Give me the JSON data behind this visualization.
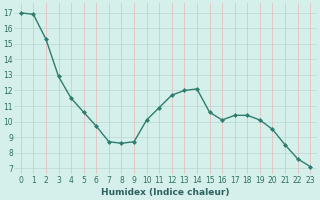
{
  "x": [
    0,
    1,
    2,
    3,
    4,
    5,
    6,
    7,
    8,
    9,
    10,
    11,
    12,
    13,
    14,
    15,
    16,
    17,
    18,
    19,
    20,
    21,
    22,
    23
  ],
  "y": [
    17.0,
    16.9,
    15.3,
    12.9,
    11.5,
    10.6,
    9.7,
    8.7,
    8.6,
    8.7,
    10.1,
    10.9,
    11.7,
    12.0,
    12.1,
    10.6,
    10.1,
    10.4,
    10.4,
    10.1,
    9.5,
    8.5,
    7.6,
    7.1
  ],
  "line_color": "#2e7d6e",
  "marker": "D",
  "marker_size": 2.0,
  "bg_color": "#d5f0eb",
  "grid_color_h": "#b5d9d3",
  "grid_color_v": "#e8b8b8",
  "ylabel_values": [
    7,
    8,
    9,
    10,
    11,
    12,
    13,
    14,
    15,
    16,
    17
  ],
  "ylim": [
    6.6,
    17.6
  ],
  "xlim": [
    -0.5,
    23.5
  ],
  "xlabel": "Humidex (Indice chaleur)",
  "xlabel_fontsize": 6.5,
  "tick_fontsize": 5.5,
  "line_width": 1.0
}
